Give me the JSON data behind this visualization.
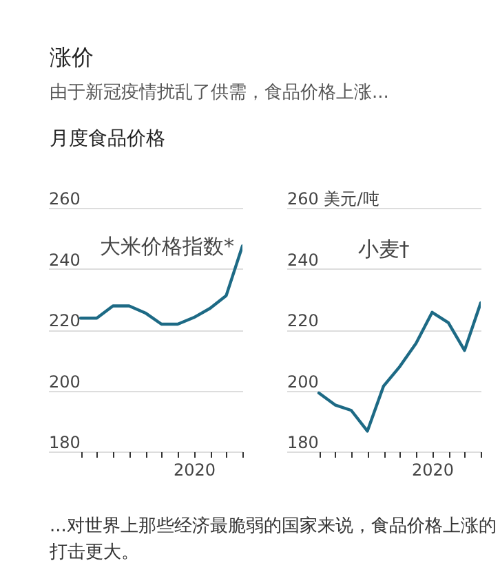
{
  "chart_data": [
    {
      "type": "line",
      "title": "涨价",
      "subtitle": "由于新冠疫情扰乱了供需，食品价格上涨...",
      "annotations": [
        "月度食品价格"
      ],
      "categories": [
        null,
        null,
        null,
        null,
        null,
        null,
        null,
        "2020",
        null,
        null,
        null
      ],
      "series": [
        {
          "name": "大米价格指数*",
          "color": "#1d6a85",
          "values": [
            223.8,
            223.8,
            227.8,
            227.8,
            225.5,
            221.8,
            221.8,
            224,
            227,
            231.2,
            247.5
          ]
        }
      ],
      "ylim": [
        180,
        260
      ],
      "yticks": [
        180,
        200,
        220,
        240,
        260
      ],
      "grid": "y",
      "legend": false
    },
    {
      "type": "line",
      "annotations": [
        "...对世界上那些经济最脆弱的国家来说，食品价格上涨的打击更大。"
      ],
      "categories": [
        null,
        null,
        null,
        null,
        null,
        null,
        null,
        "2020",
        null,
        null,
        null
      ],
      "series": [
        {
          "name": "小麦†",
          "color": "#1d6a85",
          "values": [
            199.2,
            195.3,
            193.5,
            186.7,
            201.5,
            207.9,
            215.5,
            225.7,
            222.3,
            213.2,
            228.8
          ]
        }
      ],
      "ylim": [
        180,
        260
      ],
      "yticks": [
        180,
        200,
        220,
        240,
        {
          "value": 260,
          "label": "260 美元/吨"
        }
      ],
      "grid": "y",
      "legend": false
    }
  ]
}
